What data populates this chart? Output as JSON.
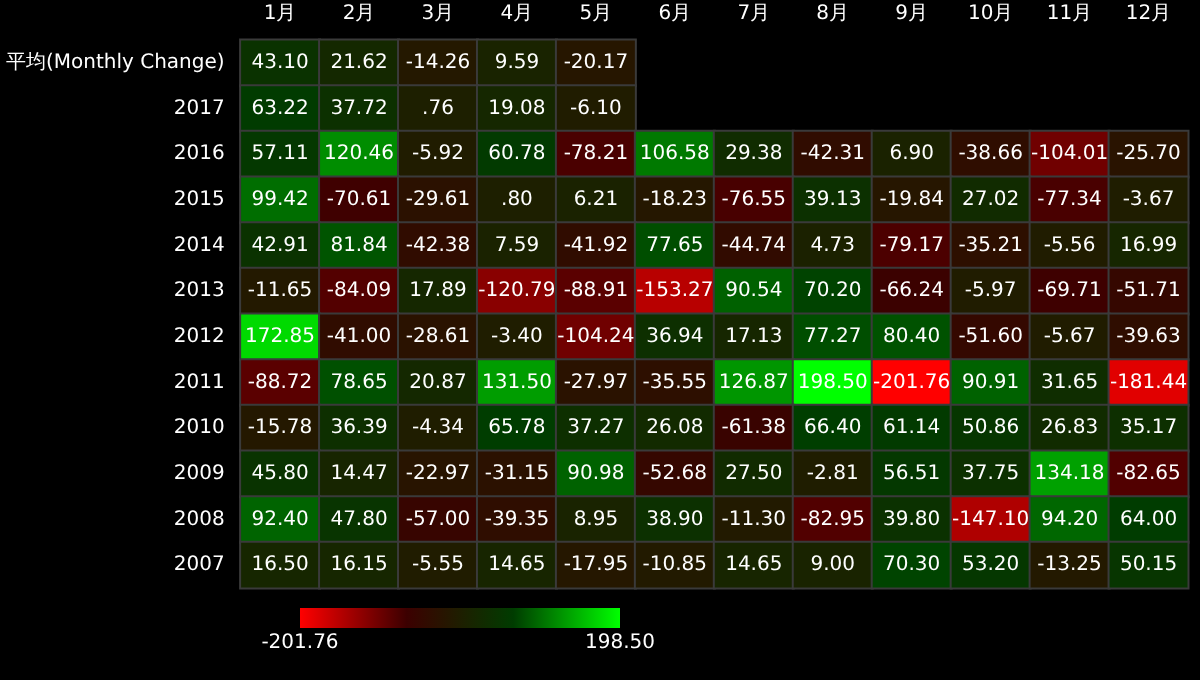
{
  "chart_data": {
    "type": "heatmap",
    "categories": [
      "1月",
      "2月",
      "3月",
      "4月",
      "5月",
      "6月",
      "7月",
      "8月",
      "9月",
      "10月",
      "11月",
      "12月"
    ],
    "y_categories": [
      "平均(Monthly Change)",
      "2017",
      "2016",
      "2015",
      "2014",
      "2013",
      "2012",
      "2011",
      "2010",
      "2009",
      "2008",
      "2007"
    ],
    "cells": [
      [
        43.1,
        21.62,
        -14.26,
        9.59,
        -20.17,
        null,
        null,
        null,
        null,
        null,
        null,
        null
      ],
      [
        63.22,
        37.72,
        0.76,
        19.08,
        -6.1,
        null,
        null,
        null,
        null,
        null,
        null,
        null
      ],
      [
        57.11,
        120.46,
        -5.92,
        60.78,
        -78.21,
        106.58,
        29.38,
        -42.31,
        6.9,
        -38.66,
        -104.01,
        -25.7
      ],
      [
        99.42,
        -70.61,
        -29.61,
        0.8,
        6.21,
        -18.23,
        -76.55,
        39.13,
        -19.84,
        27.02,
        -77.34,
        -3.67
      ],
      [
        42.91,
        81.84,
        -42.38,
        7.59,
        -41.92,
        77.65,
        -44.74,
        4.73,
        -79.17,
        -35.21,
        -5.56,
        16.99
      ],
      [
        -11.65,
        -84.09,
        17.89,
        -120.79,
        -88.91,
        -153.27,
        90.54,
        70.2,
        -66.24,
        -5.97,
        -69.71,
        -51.71
      ],
      [
        172.85,
        -41.0,
        -28.61,
        -3.4,
        -104.24,
        36.94,
        17.13,
        77.27,
        80.4,
        -51.6,
        -5.67,
        -39.63
      ],
      [
        -88.72,
        78.65,
        20.87,
        131.5,
        -27.97,
        -35.55,
        126.87,
        198.5,
        -201.76,
        90.91,
        31.65,
        -181.44
      ],
      [
        -15.78,
        36.39,
        -4.34,
        65.78,
        37.27,
        26.08,
        -61.38,
        66.4,
        61.14,
        50.86,
        26.83,
        35.17
      ],
      [
        45.8,
        14.47,
        -22.97,
        -31.15,
        90.98,
        -52.68,
        27.5,
        -2.81,
        56.51,
        37.75,
        134.18,
        -82.65
      ],
      [
        92.4,
        47.8,
        -57.0,
        -39.35,
        8.95,
        38.9,
        -11.3,
        -82.95,
        39.8,
        -147.1,
        94.2,
        64.0
      ],
      [
        16.5,
        16.15,
        -5.55,
        14.65,
        -17.95,
        -10.85,
        14.65,
        9.0,
        70.3,
        53.2,
        -13.25,
        50.15
      ]
    ],
    "cell_labels": [
      [
        "43.10",
        "21.62",
        "-14.26",
        "9.59",
        "-20.17",
        null,
        null,
        null,
        null,
        null,
        null,
        null
      ],
      [
        "63.22",
        "37.72",
        ".76",
        "19.08",
        "-6.10",
        null,
        null,
        null,
        null,
        null,
        null,
        null
      ],
      [
        "57.11",
        "120.46",
        "-5.92",
        "60.78",
        "-78.21",
        "106.58",
        "29.38",
        "-42.31",
        "6.90",
        "-38.66",
        "-104.01",
        "-25.70"
      ],
      [
        "99.42",
        "-70.61",
        "-29.61",
        ".80",
        "6.21",
        "-18.23",
        "-76.55",
        "39.13",
        "-19.84",
        "27.02",
        "-77.34",
        "-3.67"
      ],
      [
        "42.91",
        "81.84",
        "-42.38",
        "7.59",
        "-41.92",
        "77.65",
        "-44.74",
        "4.73",
        "-79.17",
        "-35.21",
        "-5.56",
        "16.99"
      ],
      [
        "-11.65",
        "-84.09",
        "17.89",
        "-120.79",
        "-88.91",
        "-153.27",
        "90.54",
        "70.20",
        "-66.24",
        "-5.97",
        "-69.71",
        "-51.71"
      ],
      [
        "172.85",
        "-41.00",
        "-28.61",
        "-3.40",
        "-104.24",
        "36.94",
        "17.13",
        "77.27",
        "80.40",
        "-51.60",
        "-5.67",
        "-39.63"
      ],
      [
        "-88.72",
        "78.65",
        "20.87",
        "131.50",
        "-27.97",
        "-35.55",
        "126.87",
        "198.50",
        "-201.76",
        "90.91",
        "31.65",
        "-181.44"
      ],
      [
        "-15.78",
        "36.39",
        "-4.34",
        "65.78",
        "37.27",
        "26.08",
        "-61.38",
        "66.40",
        "61.14",
        "50.86",
        "26.83",
        "35.17"
      ],
      [
        "45.80",
        "14.47",
        "-22.97",
        "-31.15",
        "90.98",
        "-52.68",
        "27.50",
        "-2.81",
        "56.51",
        "37.75",
        "134.18",
        "-82.65"
      ],
      [
        "92.40",
        "47.80",
        "-57.00",
        "-39.35",
        "8.95",
        "38.90",
        "-11.30",
        "-82.95",
        "39.80",
        "-147.10",
        "94.20",
        "64.00"
      ],
      [
        "16.50",
        "16.15",
        "-5.55",
        "14.65",
        "-17.95",
        "-10.85",
        "14.65",
        "9.00",
        "70.30",
        "53.20",
        "-13.25",
        "50.15"
      ]
    ],
    "clim": [
      -201.76,
      198.5
    ],
    "cticks": [
      {
        "value": -201.76,
        "label": "-201.76"
      },
      {
        "value": 198.5,
        "label": "198.50"
      }
    ]
  }
}
